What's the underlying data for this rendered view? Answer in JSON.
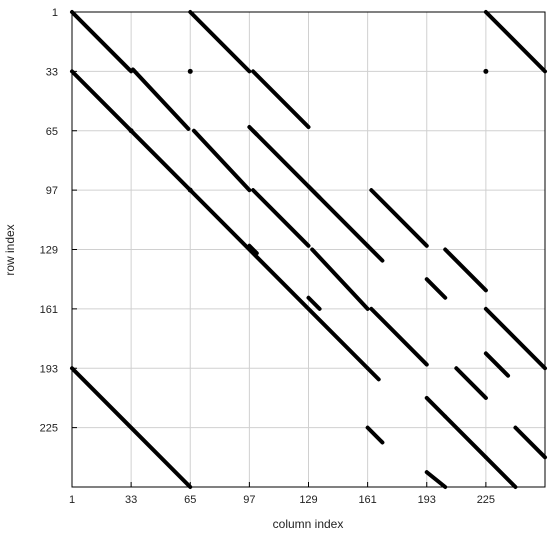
{
  "chart_data": {
    "type": "scatter",
    "title": "",
    "xlabel": "column index",
    "ylabel": "row index",
    "xlim": [
      1,
      257
    ],
    "ylim": [
      1,
      257
    ],
    "y_inverted": true,
    "grid": true,
    "x_ticks": [
      "1",
      "33",
      "65",
      "97",
      "129",
      "161",
      "193",
      "225"
    ],
    "y_ticks": [
      "1",
      "33",
      "65",
      "97",
      "129",
      "161",
      "193",
      "225"
    ],
    "marker_color": "#000000",
    "segments": [
      {
        "x": [
          1,
          33
        ],
        "y": [
          1,
          33
        ]
      },
      {
        "x": [
          34,
          64
        ],
        "y": [
          32,
          64
        ]
      },
      {
        "x": [
          1,
          65
        ],
        "y": [
          33,
          97
        ]
      },
      {
        "x": [
          65,
          161
        ],
        "y": [
          97,
          193
        ]
      },
      {
        "x": [
          65,
          97
        ],
        "y": [
          1,
          33
        ]
      },
      {
        "x": [
          99,
          129
        ],
        "y": [
          33,
          63
        ]
      },
      {
        "x": [
          1,
          65
        ],
        "y": [
          193,
          257
        ]
      },
      {
        "x": [
          225,
          257
        ],
        "y": [
          1,
          33
        ]
      },
      {
        "x": [
          67,
          97
        ],
        "y": [
          65,
          97
        ]
      },
      {
        "x": [
          99,
          129
        ],
        "y": [
          97,
          127
        ]
      },
      {
        "x": [
          99,
          161
        ],
        "y": [
          65,
          127
        ]
      },
      {
        "x": [
          131,
          161
        ],
        "y": [
          129,
          161
        ]
      },
      {
        "x": [
          163,
          193
        ],
        "y": [
          161,
          191
        ]
      },
      {
        "x": [
          163,
          193
        ],
        "y": [
          97,
          127
        ]
      },
      {
        "x": [
          203,
          225
        ],
        "y": [
          129,
          151
        ]
      },
      {
        "x": [
          193,
          203
        ],
        "y": [
          145,
          155
        ]
      },
      {
        "x": [
          225,
          257
        ],
        "y": [
          161,
          193
        ]
      },
      {
        "x": [
          225,
          237
        ],
        "y": [
          185,
          197
        ]
      },
      {
        "x": [
          209,
          225
        ],
        "y": [
          193,
          209
        ]
      },
      {
        "x": [
          193,
          203
        ],
        "y": [
          209,
          219
        ]
      },
      {
        "x": [
          203,
          225
        ],
        "y": [
          219,
          241
        ]
      },
      {
        "x": [
          241,
          257
        ],
        "y": [
          225,
          241
        ]
      },
      {
        "x": [
          225,
          241
        ],
        "y": [
          241,
          257
        ]
      },
      {
        "x": [
          193,
          203
        ],
        "y": [
          249,
          257
        ]
      },
      {
        "x": [
          97,
          101
        ],
        "y": [
          63,
          67
        ]
      },
      {
        "x": [
          97,
          101
        ],
        "y": [
          127,
          131
        ]
      },
      {
        "x": [
          129,
          135
        ],
        "y": [
          95,
          101
        ]
      },
      {
        "x": [
          129,
          135
        ],
        "y": [
          155,
          161
        ]
      },
      {
        "x": [
          161,
          169
        ],
        "y": [
          127,
          135
        ]
      },
      {
        "x": [
          161,
          167
        ],
        "y": [
          193,
          199
        ]
      },
      {
        "x": [
          161,
          169
        ],
        "y": [
          225,
          233
        ]
      }
    ],
    "points": [
      {
        "x": 65,
        "y": 33
      },
      {
        "x": 33,
        "y": 65
      },
      {
        "x": 65,
        "y": 97
      },
      {
        "x": 225,
        "y": 33
      }
    ]
  }
}
